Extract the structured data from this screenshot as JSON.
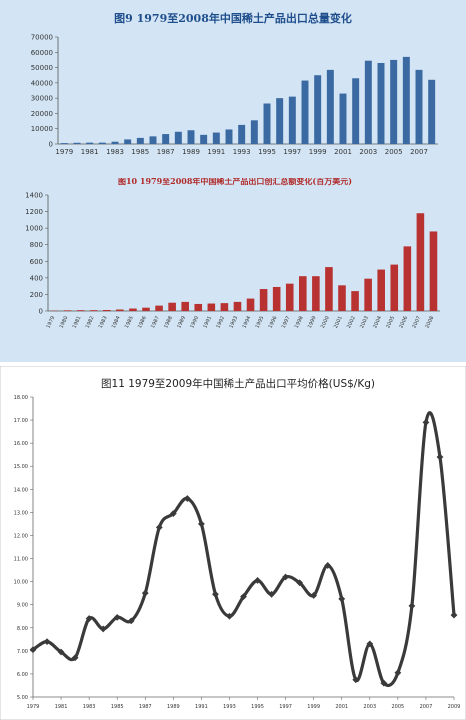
{
  "chart_data": [
    {
      "type": "bar",
      "title": "图9 1979至2008年中国稀土产品出口总量变化",
      "xlabel": "",
      "ylabel": "",
      "ylim": [
        0,
        70000
      ],
      "yticks": [
        0,
        10000,
        20000,
        30000,
        40000,
        50000,
        60000,
        70000
      ],
      "x": [
        1979,
        1980,
        1981,
        1982,
        1983,
        1984,
        1985,
        1986,
        1987,
        1988,
        1989,
        1990,
        1991,
        1992,
        1993,
        1994,
        1995,
        1996,
        1997,
        1998,
        1999,
        2000,
        2001,
        2002,
        2003,
        2004,
        2005,
        2006,
        2007,
        2008
      ],
      "xtick_labels": [
        "1979",
        "1981",
        "1983",
        "1985",
        "1987",
        "1989",
        "1991",
        "1993",
        "1995",
        "1997",
        "1999",
        "2001",
        "2003",
        "2005",
        "2007"
      ],
      "values": [
        600,
        800,
        900,
        900,
        1500,
        3000,
        4000,
        5000,
        6500,
        8000,
        9000,
        6000,
        7500,
        9500,
        12500,
        15500,
        26500,
        30000,
        31000,
        41500,
        45000,
        48500,
        33000,
        43000,
        54500,
        53000,
        55000,
        57000,
        48500,
        42000
      ],
      "bar_color": "#3b6aa3",
      "grid": false
    },
    {
      "type": "bar",
      "title": "图10 1979至2008年中国稀土产品出口创汇总额变化(百万美元)",
      "xlabel": "",
      "ylabel": "",
      "ylim": [
        0,
        1400
      ],
      "yticks": [
        0,
        200,
        400,
        600,
        800,
        1000,
        1200,
        1400
      ],
      "categories": [
        "1979",
        "1980",
        "1981",
        "1982",
        "1983",
        "1984",
        "1985",
        "1986",
        "1987",
        "1988",
        "1989",
        "1990",
        "1991",
        "1992",
        "1993",
        "1994",
        "1995",
        "1996",
        "1997",
        "1998",
        "1999",
        "2000",
        "2001",
        "2002",
        "2003",
        "2004",
        "2005",
        "2006",
        "2007",
        "2008"
      ],
      "values": [
        5,
        8,
        10,
        10,
        12,
        18,
        30,
        40,
        65,
        100,
        110,
        85,
        90,
        95,
        110,
        150,
        265,
        290,
        330,
        420,
        420,
        530,
        310,
        240,
        390,
        500,
        560,
        780,
        1180,
        960
      ],
      "bar_color": "#b83232",
      "grid": false
    },
    {
      "type": "line",
      "title": "图11 1979至2009年中国稀土产品出口平均价格(US$/Kg)",
      "xlabel": "",
      "ylabel": "",
      "ylim": [
        5.0,
        18.0
      ],
      "yticks": [
        "5.00",
        "6.00",
        "7.00",
        "8.00",
        "9.00",
        "10.00",
        "11.00",
        "12.00",
        "13.00",
        "14.00",
        "15.00",
        "16.00",
        "17.00",
        "18.00"
      ],
      "x": [
        1979,
        1980,
        1981,
        1982,
        1983,
        1984,
        1985,
        1986,
        1987,
        1988,
        1989,
        1990,
        1991,
        1992,
        1993,
        1994,
        1995,
        1996,
        1997,
        1998,
        1999,
        2000,
        2001,
        2002,
        2003,
        2004,
        2005,
        2006,
        2007,
        2008,
        2009
      ],
      "xtick_labels": [
        "1979",
        "1981",
        "1983",
        "1985",
        "1987",
        "1989",
        "1991",
        "1993",
        "1995",
        "1997",
        "1999",
        "2001",
        "2003",
        "2005",
        "2007",
        "2009"
      ],
      "values": [
        7.05,
        7.4,
        6.95,
        6.7,
        8.4,
        7.95,
        8.45,
        8.3,
        9.5,
        12.35,
        12.95,
        13.6,
        12.5,
        9.45,
        8.5,
        9.35,
        10.05,
        9.45,
        10.2,
        9.95,
        9.4,
        10.7,
        9.25,
        5.75,
        7.3,
        5.6,
        6.05,
        8.95,
        16.9,
        15.4,
        8.55
      ],
      "line_color": "#3a3a3a",
      "grid": false
    }
  ]
}
